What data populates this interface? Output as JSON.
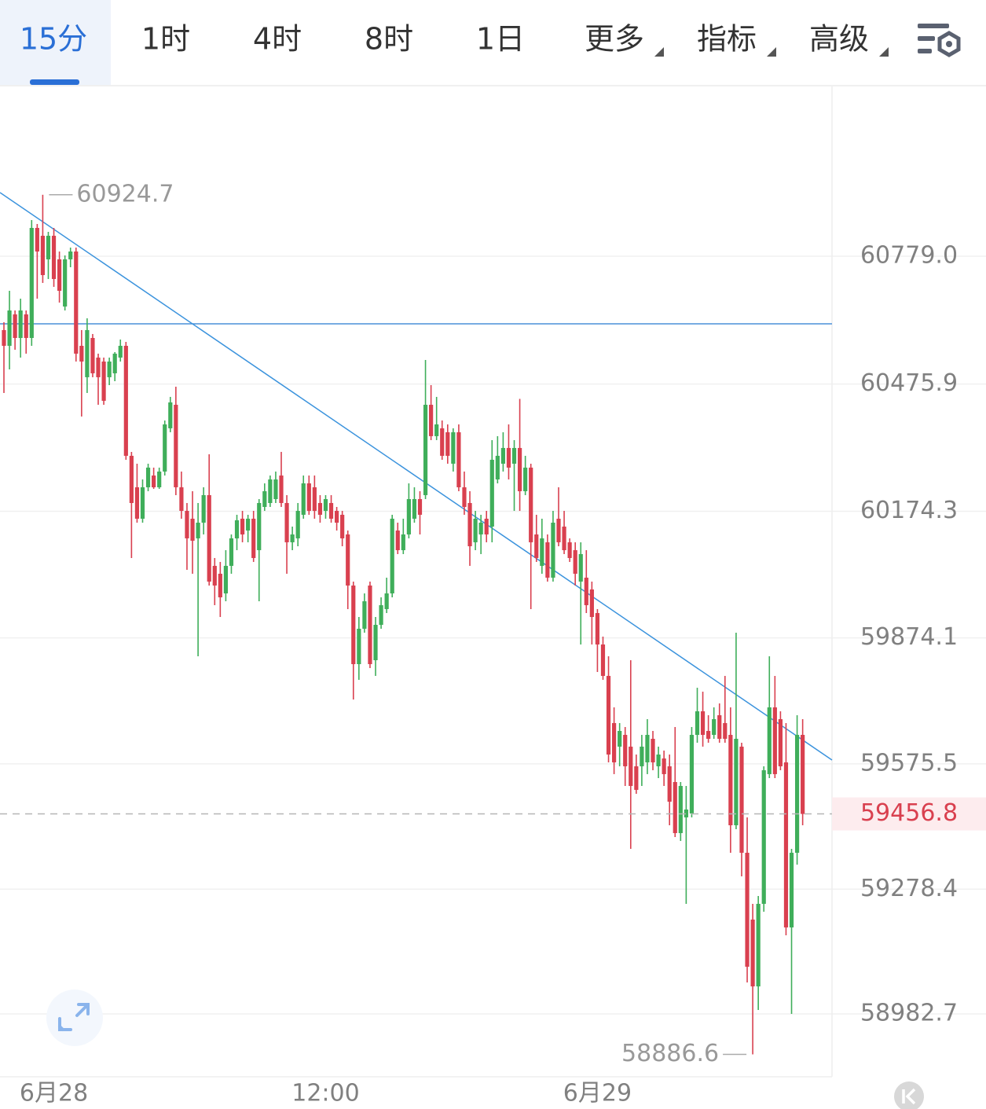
{
  "toolbar": {
    "tabs": [
      "15分",
      "1时",
      "4时",
      "8时",
      "1日",
      "更多",
      "指标",
      "高级"
    ]
  },
  "chart_data": {
    "type": "candlestick",
    "categories": [
      null,
      null,
      null,
      null,
      null,
      null,
      null,
      null,
      null,
      "6月28",
      null,
      null,
      null,
      null,
      null,
      null,
      null,
      null,
      null,
      null,
      null,
      null,
      null,
      null,
      null,
      null,
      null,
      null,
      null,
      null,
      null,
      null,
      null,
      null,
      null,
      null,
      null,
      null,
      null,
      null,
      null,
      null,
      null,
      null,
      null,
      null,
      null,
      null,
      null,
      null,
      null,
      null,
      null,
      null,
      null,
      null,
      null,
      null,
      "12:00",
      null,
      null,
      null,
      null,
      null,
      null,
      null,
      null,
      null,
      null,
      null,
      null,
      null,
      null,
      null,
      null,
      null,
      null,
      null,
      null,
      null,
      null,
      null,
      null,
      null,
      null,
      null,
      null,
      null,
      null,
      null,
      null,
      null,
      null,
      null,
      null,
      null,
      null,
      null,
      null,
      null,
      null,
      null,
      null,
      null,
      null,
      null,
      null,
      "6月29",
      null,
      null,
      null,
      null,
      null,
      null,
      null,
      null,
      null,
      null,
      null,
      null,
      null,
      null,
      null,
      null,
      null,
      null,
      null,
      null,
      null,
      null,
      null,
      null,
      null,
      null,
      null,
      null,
      null,
      null,
      null,
      null,
      null,
      null,
      null,
      null,
      null
    ],
    "open": [
      60603.9,
      60566.6,
      60641.1,
      60585.2,
      60641.1,
      60585.2,
      60846.1,
      60827.5,
      60771.6,
      60827.5,
      60771.6,
      60659.8,
      60771.6,
      60790.2,
      60566.6,
      60492.1,
      60585.2,
      60538.7,
      60529.3,
      60492.1,
      60501.4,
      60538.7,
      60566.6,
      60305.8,
      60231.2,
      60156.7,
      60231.2,
      60259.1,
      60231.2,
      60268.5,
      60371.0,
      60426.8,
      60231.2,
      60175.3,
      60156.7,
      60110.1,
      60147.3,
      60212.6,
      60044.9,
      60026.2,
      59979.6,
      60044.9,
      60110.1,
      60156.7,
      60128.7,
      60156.7,
      60082.1,
      60184.6,
      60193.9,
      60203.2,
      60259.1,
      60193.9,
      60100.8,
      60110.1,
      60166.0,
      60240.5,
      60231.2,
      60193.9,
      60175.3,
      60193.9,
      60175.3,
      60166.0,
      60119.4,
      59998.3,
      59811.9,
      59895.8,
      59998.3,
      59821.2,
      59905.1,
      59942.4,
      59979.6,
      60128.7,
      60082.1,
      60119.4,
      60156.7,
      60203.2,
      60212.6,
      60426.8,
      60352.4,
      60371.0,
      60361.7,
      60287.1,
      60361.7,
      60231.2,
      60193.9,
      60100.8,
      60119.4,
      60156.7,
      60138.0,
      60249.8,
      60287.1,
      60324.4,
      60287.1,
      60324.4,
      60221.9,
      60277.8,
      60119.4,
      60044.9,
      60100.8,
      60016.9,
      60156.7,
      60138.0,
      60100.8,
      60082.1,
      60007.6,
      60016.9,
      59989.0,
      59933.0,
      59858.5,
      59784.0,
      59672.2,
      59616.3,
      59644.2,
      59616.3,
      59569.7,
      59569.7,
      59579.0,
      59634.9,
      59569.7,
      59588.3,
      59569.7,
      59532.4,
      59411.3,
      59448.6,
      59457.9,
      59644.2,
      59700.1,
      59653.5,
      59644.2,
      59690.8,
      59672.2,
      59644.2,
      59429.9,
      59616.3,
      59364.7,
      59206.3,
      59047.9,
      59243.6,
      59551.1,
      59709.4,
      59681.5,
      59579.0,
      59187.7,
      59364.7,
      59644.2
    ],
    "high": [
      60622.5,
      60697.0,
      60650.4,
      60678.4,
      60650.4,
      60864.8,
      60855.4,
      60924.7,
      60836.8,
      60846.1,
      60790.2,
      60780.9,
      60799.5,
      60799.5,
      60603.9,
      60631.8,
      60594.6,
      60548.0,
      60538.7,
      60538.7,
      60551.7,
      60581.5,
      60575.9,
      60315.1,
      60287.1,
      60249.8,
      60287.1,
      60277.8,
      60277.8,
      60389.6,
      60445.5,
      60469.7,
      60268.5,
      60193.9,
      60221.9,
      60193.9,
      60231.2,
      60309.5,
      60063.5,
      60054.2,
      60082.1,
      60119.4,
      60166.0,
      60175.3,
      60166.0,
      60175.3,
      60203.2,
      60240.5,
      60259.1,
      60268.5,
      60315.1,
      60212.6,
      60138.0,
      60193.9,
      60259.1,
      60259.1,
      60259.1,
      60212.6,
      60212.6,
      60212.6,
      60184.6,
      60175.3,
      60128.7,
      60007.6,
      59923.7,
      59979.6,
      60007.6,
      59923.7,
      59970.3,
      60016.9,
      60166.0,
      60147.3,
      60156.7,
      60240.5,
      60231.2,
      60221.9,
      60533.0,
      60473.4,
      60445.5,
      60389.6,
      60380.3,
      60371.0,
      60380.3,
      60268.5,
      60221.9,
      60175.3,
      60166.0,
      60175.3,
      60343.0,
      60352.4,
      60361.7,
      60380.3,
      60343.0,
      60440.8,
      60305.8,
      60287.1,
      60166.0,
      60156.7,
      60119.4,
      60175.3,
      60231.2,
      60175.3,
      60110.1,
      60100.8,
      60100.8,
      60082.1,
      60007.6,
      59942.4,
      59877.2,
      59830.6,
      59709.4,
      59672.2,
      59662.8,
      59821.2,
      59597.6,
      59644.2,
      59681.5,
      59653.5,
      59616.3,
      59607.0,
      59597.6,
      59662.8,
      59532.4,
      59523.1,
      59662.8,
      59755.9,
      59746.6,
      59690.8,
      59709.4,
      59718.8,
      59784.0,
      59709.4,
      59886.5,
      59625.6,
      59448.6,
      59243.6,
      59262.3,
      59569.7,
      59830.6,
      59784.0,
      59700.1,
      59672.2,
      59374.0,
      59690.8,
      59681.5
    ],
    "low": [
      60454.8,
      60510.7,
      60557.3,
      60538.7,
      60548.0,
      60566.6,
      60678.4,
      60715.7,
      60725.0,
      60706.4,
      60669.1,
      60650.4,
      60752.9,
      60529.3,
      60399.0,
      60454.8,
      60492.1,
      60426.8,
      60426.8,
      60473.4,
      60482.7,
      60529.3,
      60296.4,
      60063.5,
      60147.3,
      60147.3,
      60221.9,
      60227.4,
      60227.4,
      60259.1,
      60361.7,
      60212.6,
      60156.7,
      60035.5,
      60026.2,
      59830.6,
      60119.4,
      59998.3,
      59951.7,
      59923.7,
      59961.0,
      60026.2,
      60082.1,
      60100.8,
      60100.8,
      60054.2,
      59961.0,
      60175.3,
      60184.6,
      60193.9,
      60184.6,
      60026.2,
      60082.1,
      60091.4,
      60156.7,
      60166.0,
      60156.7,
      60147.3,
      60156.7,
      60147.3,
      60128.7,
      60091.4,
      59942.4,
      59728.1,
      59774.7,
      59886.5,
      59802.6,
      59784.0,
      59895.8,
      59933.0,
      59970.3,
      60072.8,
      60072.8,
      60110.1,
      60147.3,
      60119.4,
      60203.2,
      60343.0,
      60343.0,
      60296.4,
      60287.1,
      60268.5,
      60221.9,
      60166.0,
      60044.9,
      60082.1,
      60072.8,
      60100.8,
      60100.8,
      60240.5,
      60268.5,
      60249.8,
      60175.3,
      60175.3,
      60212.6,
      59942.4,
      60054.2,
      60026.2,
      60007.6,
      60007.6,
      60091.4,
      60072.8,
      60054.2,
      59998.3,
      59858.5,
      59933.0,
      59858.5,
      59793.3,
      59774.7,
      59579.0,
      59551.1,
      59569.7,
      59523.1,
      59374.0,
      59504.5,
      59523.1,
      59551.1,
      59560.4,
      59541.7,
      59523.1,
      59429.9,
      59402.0,
      59392.7,
      59243.6,
      59448.6,
      59625.6,
      59616.3,
      59625.6,
      59634.9,
      59625.6,
      59625.6,
      59364.7,
      59420.6,
      59308.8,
      59057.2,
      58886.6,
      58992.0,
      59225.0,
      59541.7,
      59541.7,
      59560.4,
      59169.1,
      58982.7,
      59336.6,
      59429.9
    ],
    "close": [
      60566.6,
      60650.4,
      60585.2,
      60650.4,
      60585.2,
      60846.1,
      60790.2,
      60734.3,
      60827.5,
      60725.0,
      60697.0,
      60771.6,
      60790.2,
      60548.0,
      60529.3,
      60603.9,
      60501.4,
      60492.1,
      60436.2,
      60529.3,
      60548.0,
      60566.6,
      60305.8,
      60193.9,
      60156.7,
      60231.2,
      60277.8,
      60231.2,
      60268.5,
      60380.3,
      60432.4,
      60231.2,
      60175.3,
      60110.1,
      60104.5,
      60147.3,
      60212.6,
      60007.6,
      59998.3,
      59970.3,
      60044.9,
      60110.1,
      60153.0,
      60119.4,
      60156.7,
      60063.5,
      60193.9,
      60221.9,
      60249.8,
      60249.8,
      60193.9,
      60100.8,
      60119.4,
      60175.3,
      60240.5,
      60175.3,
      60175.3,
      60166.0,
      60203.2,
      60156.7,
      60147.3,
      60110.1,
      59998.3,
      59811.9,
      59895.8,
      59961.0,
      59811.9,
      59905.1,
      59951.7,
      59979.6,
      60156.7,
      60082.1,
      60119.4,
      60203.2,
      60203.2,
      60166.0,
      60426.8,
      60352.4,
      60380.3,
      60305.8,
      60305.8,
      60361.7,
      60231.2,
      60184.6,
      60091.4,
      60156.7,
      60147.3,
      60119.4,
      60296.4,
      60305.8,
      60324.4,
      60277.8,
      60324.4,
      60221.9,
      60277.8,
      60100.8,
      60063.5,
      60110.1,
      60016.9,
      60147.3,
      60100.8,
      60082.1,
      60063.5,
      60026.2,
      60072.8,
      59951.7,
      59923.7,
      59858.5,
      59784.0,
      59597.6,
      59579.0,
      59653.5,
      59569.7,
      59523.1,
      59513.8,
      59616.3,
      59644.2,
      59579.0,
      59597.6,
      59551.1,
      59485.8,
      59411.3,
      59523.1,
      59467.2,
      59644.2,
      59700.1,
      59644.2,
      59634.9,
      59681.5,
      59634.9,
      59634.9,
      59429.9,
      59634.9,
      59364.7,
      59094.5,
      59047.9,
      59243.6,
      59560.4,
      59709.4,
      59551.1,
      59569.7,
      59187.7,
      59364.7,
      59644.2,
      59456.8
    ],
    "up_color": "#3fae5a",
    "down_color": "#d9404f",
    "ylim": [
      58833.6,
      61181.5
    ],
    "yticks": [
      {
        "value": 60779,
        "label": "60779.0"
      },
      60475.9,
      60174.3,
      59874.1,
      59575.5,
      59278.4,
      58982.7
    ],
    "grid": true
  }
}
